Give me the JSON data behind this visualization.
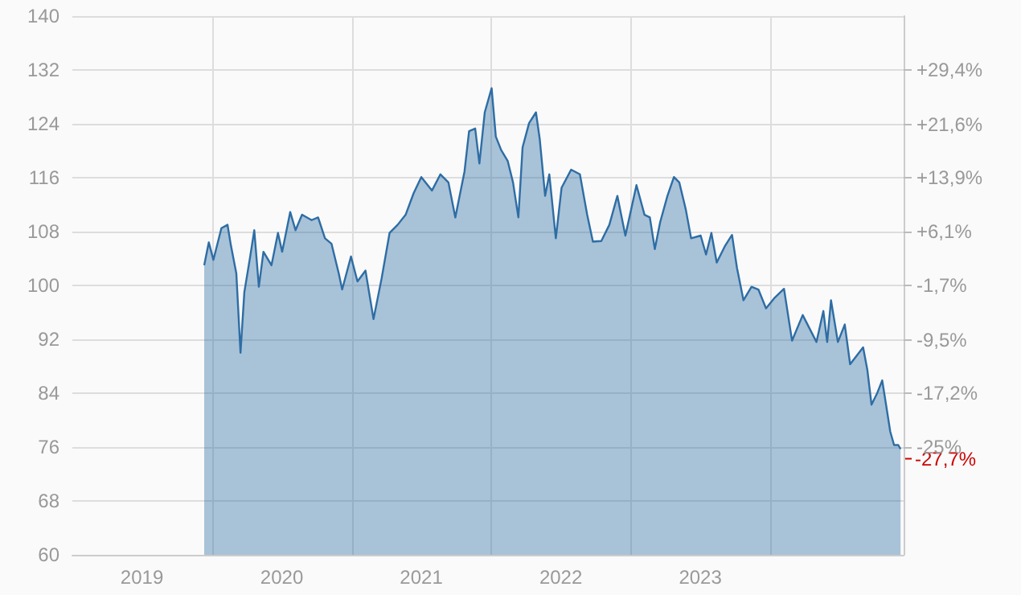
{
  "chart_data": {
    "type": "area",
    "x": [
      "2019-12-12",
      "2019-12-24",
      "2020-01-05",
      "2020-01-26",
      "2020-02-11",
      "2020-02-20",
      "2020-03-05",
      "2020-03-16",
      "2020-03-26",
      "2020-04-10",
      "2020-04-21",
      "2020-05-03",
      "2020-05-15",
      "2020-06-05",
      "2020-06-22",
      "2020-07-03",
      "2020-07-24",
      "2020-08-07",
      "2020-08-24",
      "2020-09-18",
      "2020-10-05",
      "2020-10-23",
      "2020-11-09",
      "2020-11-28",
      "2020-12-07",
      "2020-12-30",
      "2021-01-16",
      "2021-02-06",
      "2021-02-27",
      "2021-03-20",
      "2021-04-10",
      "2021-05-01",
      "2021-05-22",
      "2021-06-12",
      "2021-07-02",
      "2021-07-30",
      "2021-08-21",
      "2021-09-11",
      "2021-09-29",
      "2021-10-23",
      "2021-11-04",
      "2021-11-20",
      "2021-12-01",
      "2021-12-15",
      "2022-01-02",
      "2022-01-13",
      "2022-01-27",
      "2022-02-13",
      "2022-02-27",
      "2022-03-13",
      "2022-03-24",
      "2022-04-10",
      "2022-04-28",
      "2022-05-08",
      "2022-05-22",
      "2022-06-02",
      "2022-06-19",
      "2022-07-04",
      "2022-07-29",
      "2022-08-21",
      "2022-09-09",
      "2022-09-24",
      "2022-10-16",
      "2022-11-06",
      "2022-11-27",
      "2022-12-18",
      "2023-01-16",
      "2023-02-06",
      "2023-02-20",
      "2023-03-05",
      "2023-03-19",
      "2023-04-07",
      "2023-04-24",
      "2023-05-08",
      "2023-05-25",
      "2023-06-08",
      "2023-07-03",
      "2023-07-17",
      "2023-07-31",
      "2023-08-14",
      "2023-09-04",
      "2023-09-23",
      "2023-10-06",
      "2023-10-23",
      "2023-11-13",
      "2023-12-01",
      "2023-12-21",
      "2024-01-13",
      "2024-02-06",
      "2024-02-27",
      "2024-03-26",
      "2024-05-01",
      "2024-05-19",
      "2024-05-29",
      "2024-06-08",
      "2024-06-26",
      "2024-07-14",
      "2024-07-28",
      "2024-08-31",
      "2024-09-11",
      "2024-09-22",
      "2024-10-06",
      "2024-10-20",
      "2024-10-30",
      "2024-11-10",
      "2024-11-20",
      "2024-12-01",
      "2024-12-07"
    ],
    "series": [
      {
        "color": "#2e6da4",
        "values": [
          103.0,
          106.4,
          103.8,
          108.5,
          109.0,
          105.9,
          101.8,
          90.0,
          99.0,
          104.2,
          108.2,
          99.8,
          105.0,
          103.0,
          107.8,
          105.0,
          110.9,
          108.2,
          110.5,
          109.7,
          110.1,
          107.0,
          106.2,
          101.8,
          99.4,
          104.3,
          100.6,
          102.2,
          95.0,
          101.0,
          107.8,
          109.0,
          110.5,
          113.7,
          116.1,
          114.1,
          116.5,
          115.3,
          110.1,
          116.9,
          122.9,
          123.3,
          118.1,
          125.7,
          129.3,
          122.1,
          120.1,
          118.5,
          115.3,
          110.1,
          120.5,
          124.1,
          125.7,
          121.7,
          113.3,
          116.5,
          107.0,
          114.5,
          117.2,
          116.5,
          110.5,
          106.5,
          106.6,
          109.0,
          113.3,
          107.4,
          114.9,
          110.5,
          110.1,
          105.4,
          109.4,
          113.3,
          116.1,
          115.3,
          111.3,
          107.0,
          107.4,
          104.6,
          107.8,
          103.4,
          105.8,
          107.5,
          102.6,
          97.8,
          99.8,
          99.4,
          96.6,
          98.2,
          99.5,
          91.8,
          95.6,
          91.6,
          96.2,
          91.6,
          97.8,
          91.6,
          94.2,
          88.3,
          90.8,
          87.5,
          82.3,
          83.9,
          85.9,
          82.3,
          78.3,
          76.3,
          76.3,
          75.7
        ]
      }
    ],
    "xlim": [
      "2019-01-01",
      "2024-12-15"
    ],
    "xticks": [
      {
        "value": "2019-07-02",
        "label": "2019"
      },
      {
        "value": "2020-01-01",
        "label": null
      },
      {
        "value": "2020-07-02",
        "label": "2020"
      },
      {
        "value": "2021-01-01",
        "label": null
      },
      {
        "value": "2021-07-02",
        "label": "2021"
      },
      {
        "value": "2022-01-01",
        "label": null
      },
      {
        "value": "2022-07-02",
        "label": "2022"
      },
      {
        "value": "2023-01-01",
        "label": null
      },
      {
        "value": "2023-07-02",
        "label": "2023"
      },
      {
        "value": "2024-01-01",
        "label": null
      }
    ],
    "ylim": [
      60,
      140
    ],
    "yticks": [
      60,
      68,
      76,
      84,
      92,
      100,
      108,
      116,
      124,
      132,
      140
    ],
    "y2lim": [
      -40.5,
      37.2
    ],
    "y2ticks": [
      {
        "value": -25,
        "label": "-25%"
      },
      {
        "value": -17.2,
        "label": "-17,2%"
      },
      {
        "value": -9.5,
        "label": "-9,5%"
      },
      {
        "value": -1.7,
        "label": "-1,7%"
      },
      {
        "value": 6.1,
        "label": "+6,1%"
      },
      {
        "value": 13.9,
        "label": "+13,9%"
      },
      {
        "value": 21.6,
        "label": "+21,6%"
      },
      {
        "value": 29.4,
        "label": "+29,4%"
      }
    ],
    "annotations": [
      {
        "text": "-27,7%",
        "x": "2024-12-07",
        "y": 75.7
      }
    ],
    "grid": true
  }
}
